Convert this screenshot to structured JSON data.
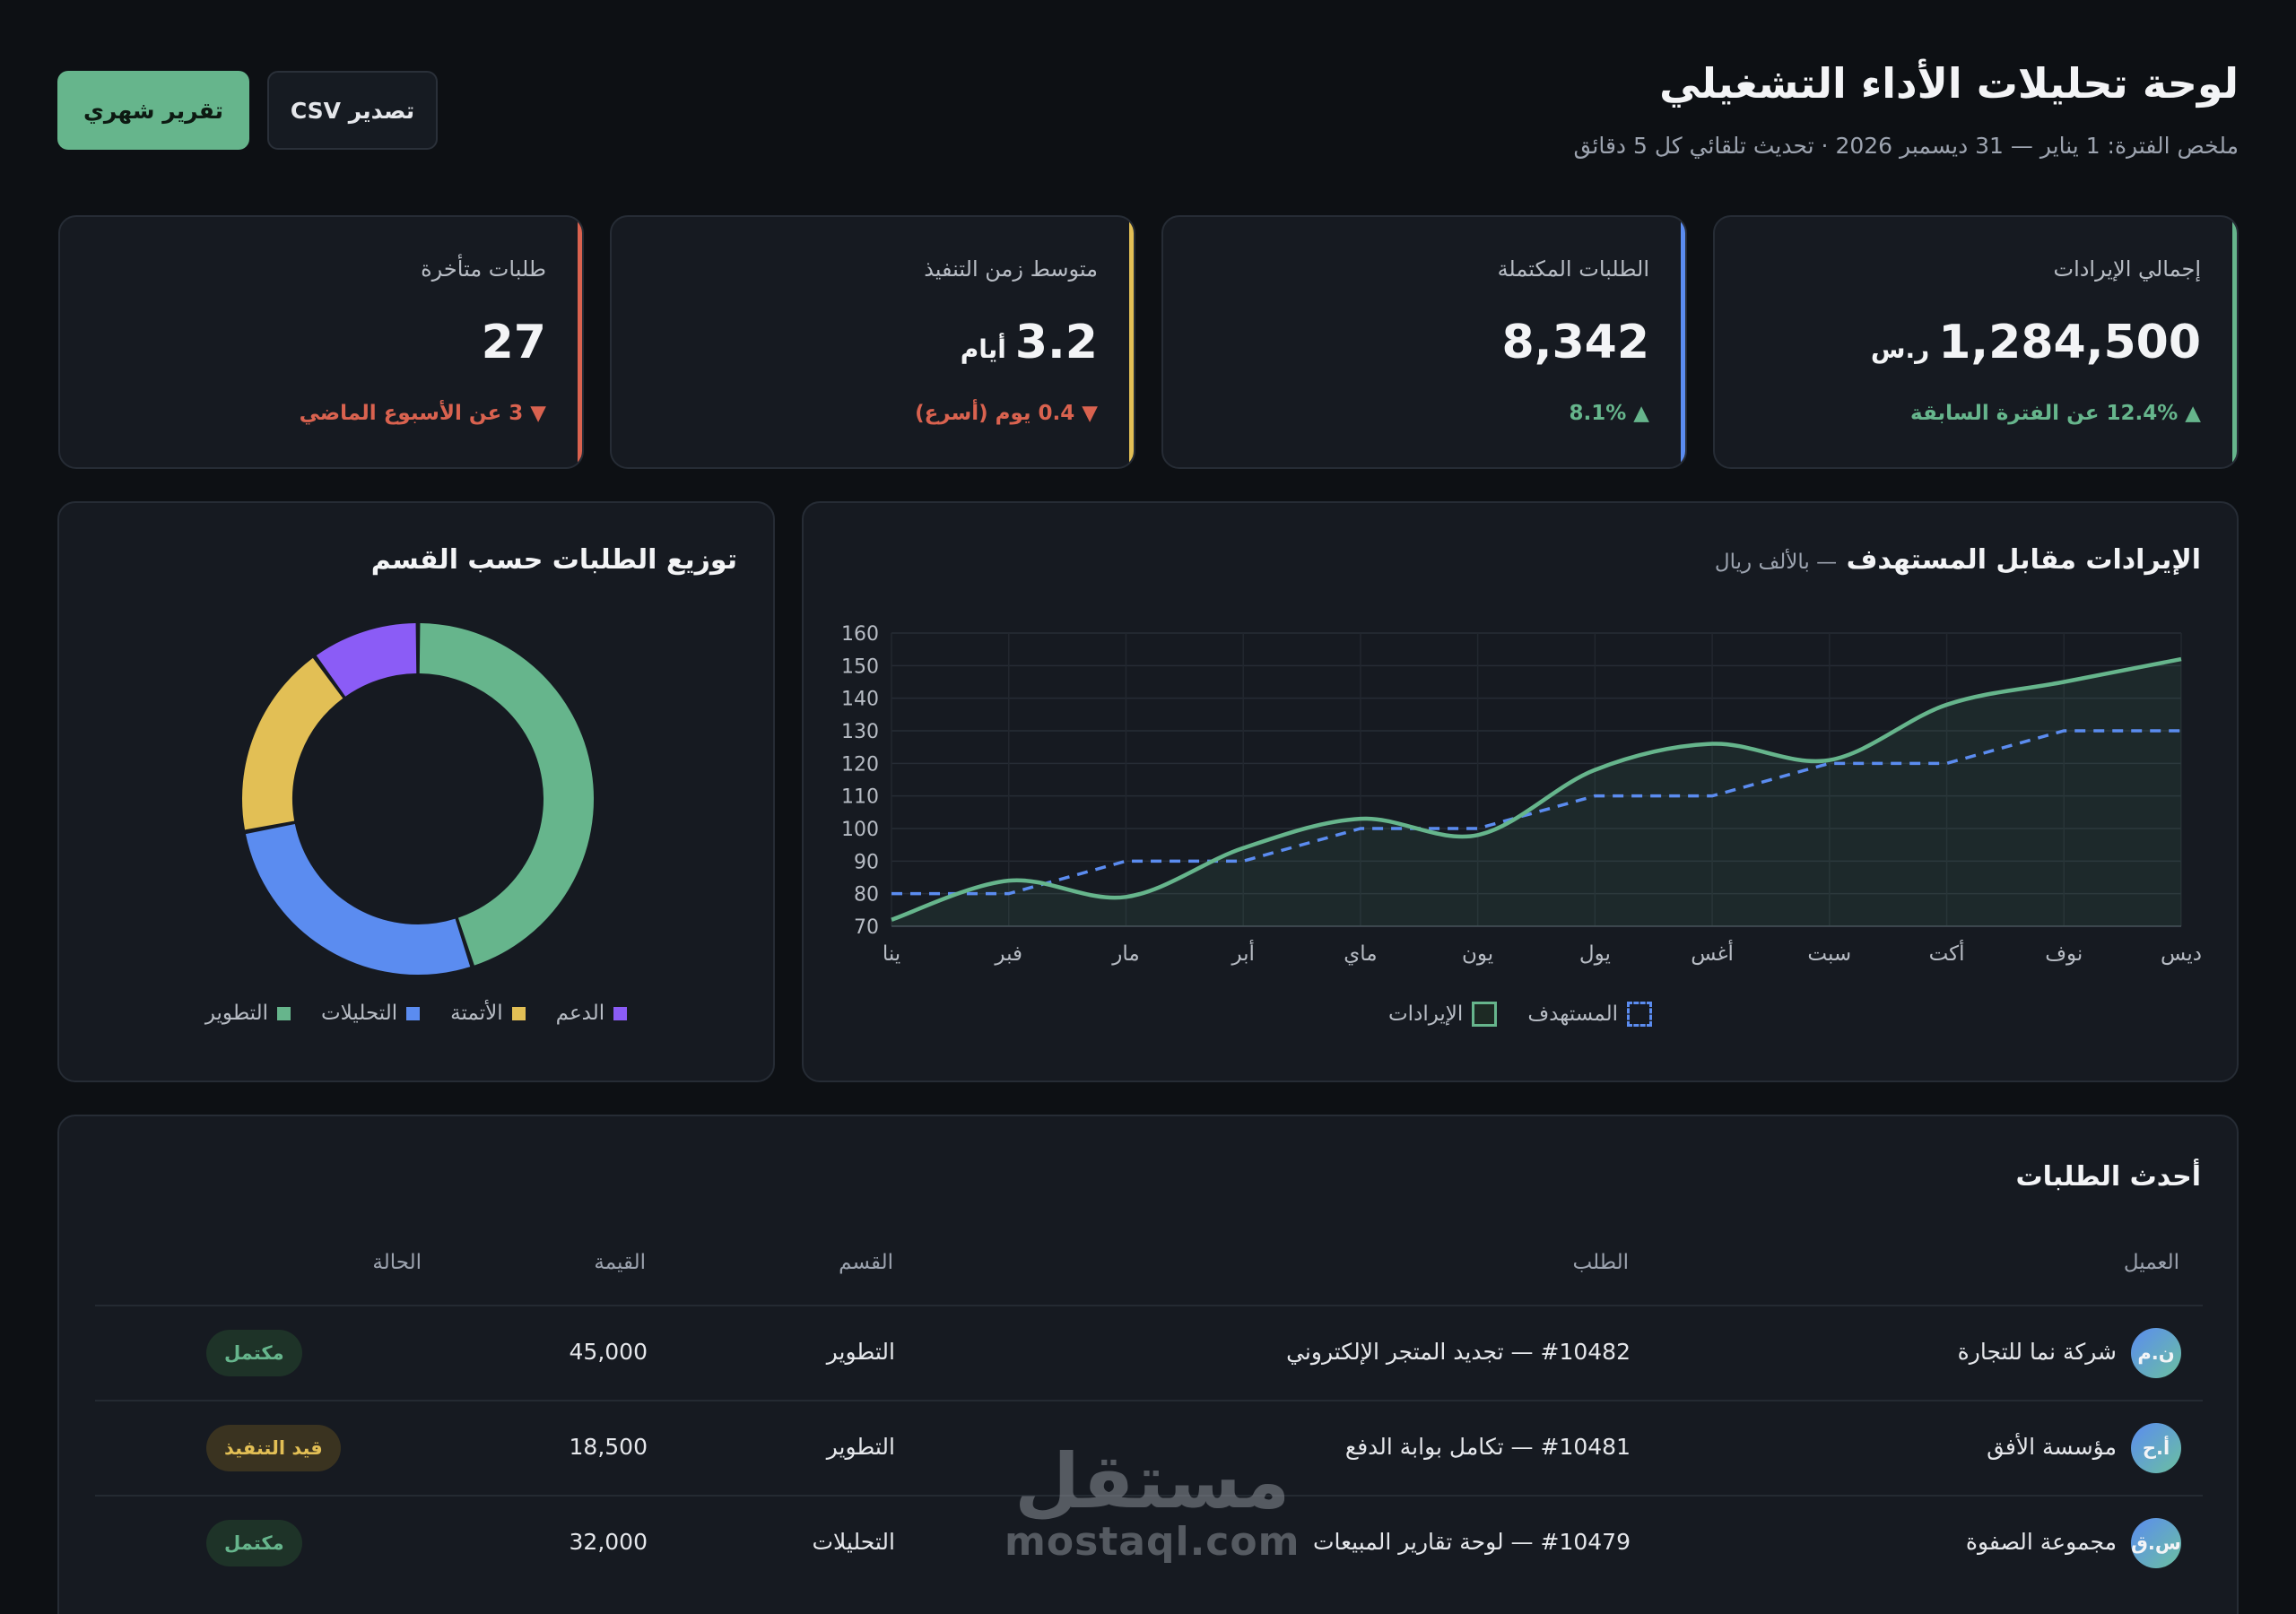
{
  "header": {
    "title": "لوحة تحليلات الأداء التشغيلي",
    "subtitle": "ملخص الفترة: 1 يناير — 31 ديسمبر 2026 · تحديث تلقائي كل 5 دقائق",
    "primary_button": "تقرير شهري",
    "secondary_button": "تصدير CSV"
  },
  "kpis": [
    {
      "label": "إجمالي الإيرادات",
      "value": "1,284,500",
      "unit": "ر.س",
      "change": "▲ 12.4% عن الفترة السابقة",
      "trend": "up",
      "accent": "#66b58c"
    },
    {
      "label": "الطلبات المكتملة",
      "value": "8,342",
      "unit": "",
      "change": "▲ 8.1%",
      "trend": "up",
      "accent": "#5b8cf0"
    },
    {
      "label": "متوسط زمن التنفيذ",
      "value": "3.2",
      "unit": "أيام",
      "change": "▼ 0.4 يوم (أسرع)",
      "trend": "down",
      "accent": "#e2bf55"
    },
    {
      "label": "طلبات متأخرة",
      "value": "27",
      "unit": "",
      "change": "▼ 3 عن الأسبوع الماضي",
      "trend": "down",
      "accent": "#d9624f"
    }
  ],
  "line_panel": {
    "title": "الإيرادات مقابل المستهدف",
    "subtitle": "— بالألف ريال"
  },
  "donut_panel": {
    "title": "توزيع الطلبات حسب القسم"
  },
  "chart_data": [
    {
      "type": "line",
      "title": "الإيرادات مقابل المستهدف",
      "categories": [
        "ينا",
        "فبر",
        "مار",
        "أبر",
        "ماي",
        "يون",
        "يول",
        "أغس",
        "سبت",
        "أكت",
        "نوف",
        "ديس"
      ],
      "ylim": [
        70,
        160
      ],
      "yticks": [
        70,
        80,
        90,
        100,
        110,
        120,
        130,
        140,
        150,
        160
      ],
      "grid": true,
      "legend": "bottom",
      "series": [
        {
          "name": "الإيرادات",
          "values": [
            72,
            84,
            79,
            94,
            103,
            98,
            118,
            126,
            121,
            138,
            145,
            152
          ],
          "color": "#66b58c",
          "style": "solid-area"
        },
        {
          "name": "المستهدف",
          "values": [
            80,
            80,
            90,
            90,
            100,
            100,
            110,
            110,
            120,
            120,
            130,
            130
          ],
          "color": "#5b8cf0",
          "style": "dashed"
        }
      ]
    },
    {
      "type": "pie",
      "title": "توزيع الطلبات حسب القسم",
      "legend": "bottom",
      "slices": [
        {
          "name": "التطوير",
          "value": 45,
          "color": "#66b58c"
        },
        {
          "name": "التحليلات",
          "value": 27,
          "color": "#5b8cf0"
        },
        {
          "name": "الأتمتة",
          "value": 18,
          "color": "#e2bf55"
        },
        {
          "name": "الدعم",
          "value": 10,
          "color": "#8b5cf6"
        }
      ]
    }
  ],
  "table": {
    "title": "أحدث الطلبات",
    "headers": {
      "client": "العميل",
      "order": "الطلب",
      "dept": "القسم",
      "value": "القيمة",
      "status": "الحالة"
    },
    "rows": [
      {
        "initials": "ن.م",
        "client": "شركة نما للتجارة",
        "order": "#10482 — تجديد المتجر الإلكتروني",
        "dept": "التطوير",
        "value": "45,000",
        "status": "مكتمل",
        "status_type": "done"
      },
      {
        "initials": "أ.ح",
        "client": "مؤسسة الأفق",
        "order": "#10481 — تكامل بوابة الدفع",
        "dept": "التطوير",
        "value": "18,500",
        "status": "قيد التنفيذ",
        "status_type": "progress"
      },
      {
        "initials": "س.ق",
        "client": "مجموعة الصفوة",
        "order": "#10479 — لوحة تقارير المبيعات",
        "dept": "التحليلات",
        "value": "32,000",
        "status": "مكتمل",
        "status_type": "done"
      }
    ]
  },
  "watermark": {
    "arabic": "مستقل",
    "latin": "mostaql.com"
  }
}
